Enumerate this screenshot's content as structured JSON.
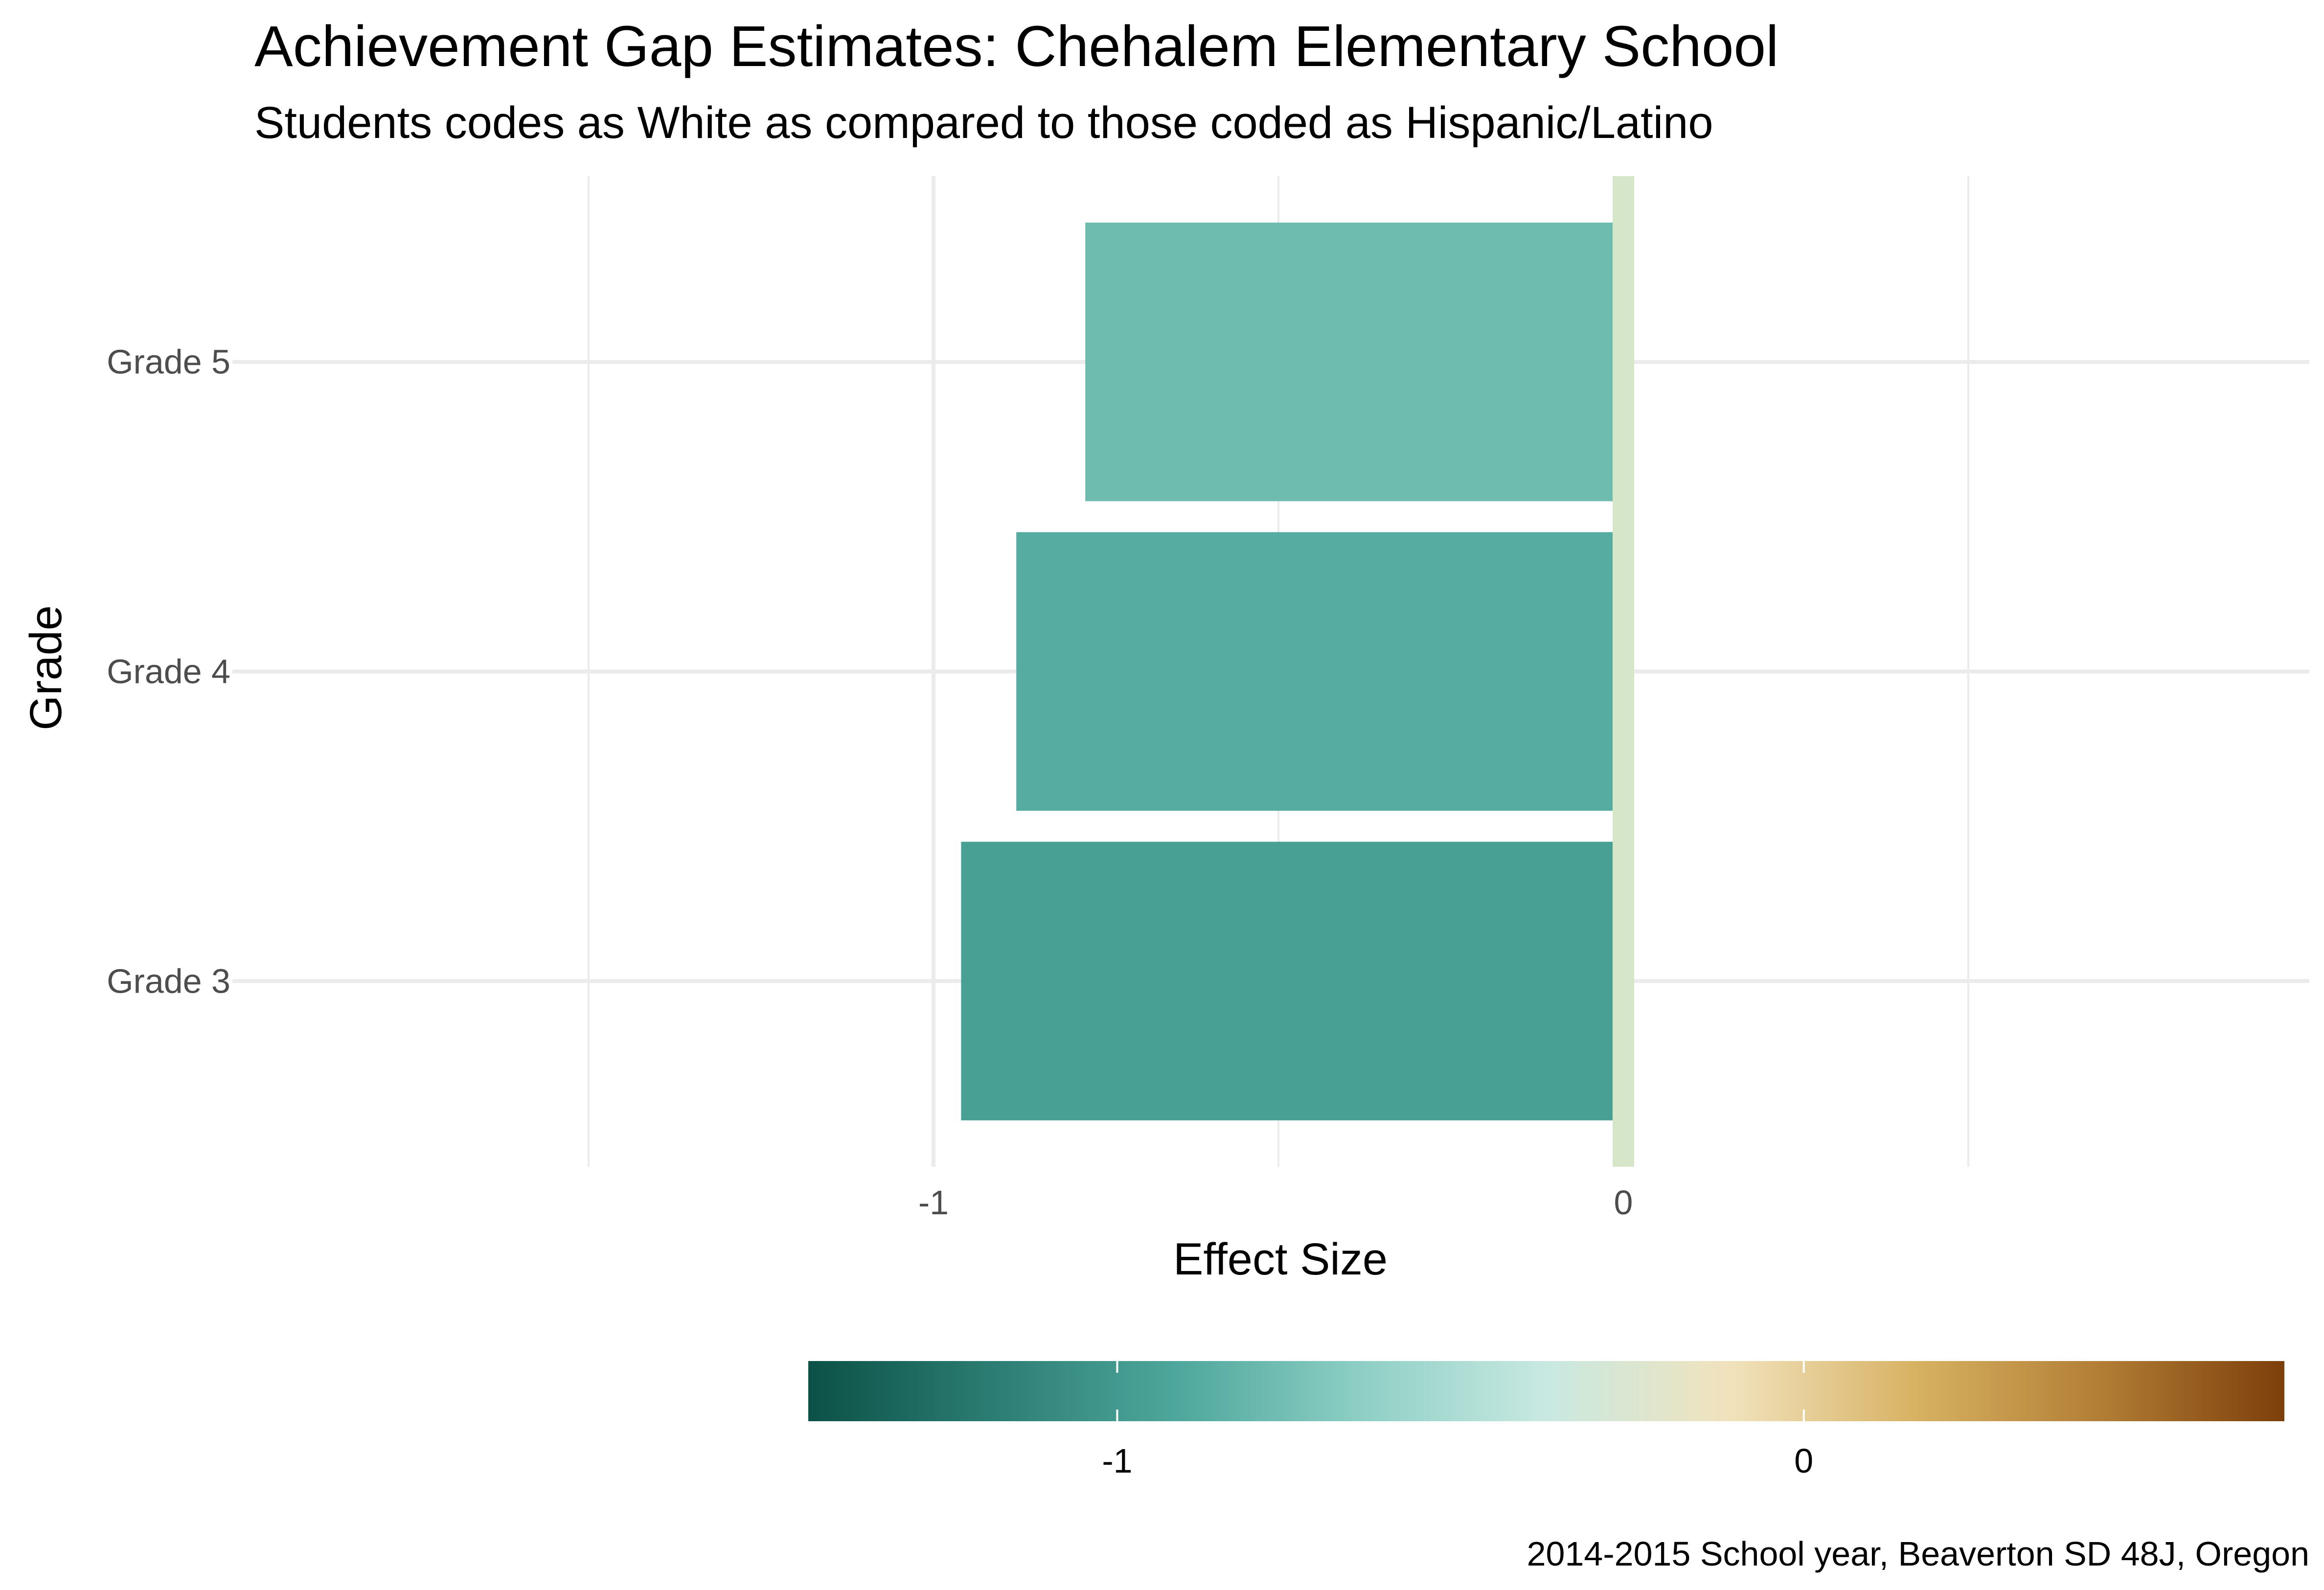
{
  "chart_data": {
    "type": "bar",
    "orientation": "horizontal",
    "title": "Achievement Gap Estimates: Chehalem Elementary School",
    "subtitle": "Students codes as White as compared to those coded as Hispanic/Latino",
    "xlabel": "Effect Size",
    "ylabel": "Grade",
    "caption": "2014-2015 School year, Beaverton SD 48J, Oregon",
    "categories": [
      "Grade 3",
      "Grade 4",
      "Grade 5"
    ],
    "values": [
      -0.96,
      -0.88,
      -0.78
    ],
    "xlim": [
      -1.5,
      1.0
    ],
    "x_ticks": [
      -1,
      0
    ],
    "x_tick_labels": [
      "-1",
      "0"
    ],
    "zero_reference_color": "#d6e6c9",
    "grid": true,
    "legend": {
      "type": "colorbar",
      "placement": "bottom",
      "range": [
        -1.45,
        0.7
      ],
      "ticks": [
        -1,
        0
      ],
      "tick_labels": [
        "-1",
        "0"
      ],
      "palette": [
        "#0b5147",
        "#2c7d73",
        "#4ea79c",
        "#8ecfc5",
        "#c8e9e1",
        "#f1e2bc",
        "#d7b263",
        "#b27e35",
        "#7c3f0a"
      ]
    }
  }
}
